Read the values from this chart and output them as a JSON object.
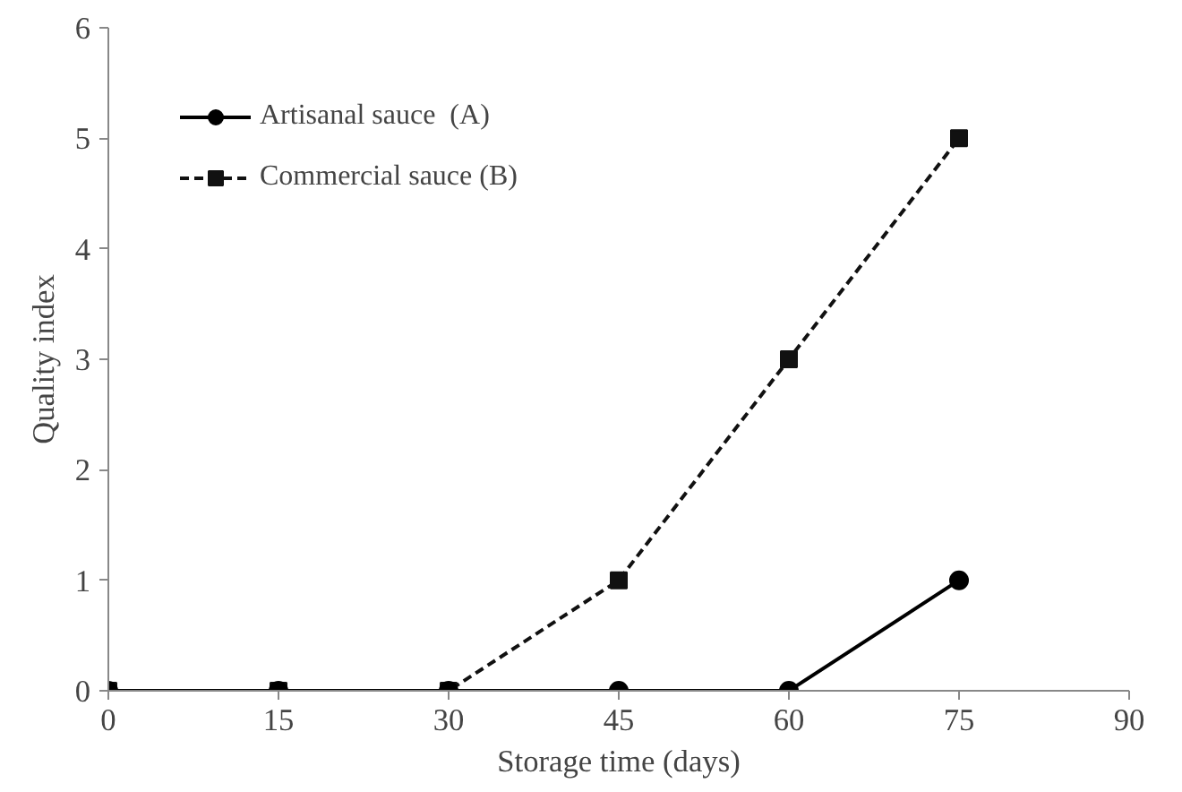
{
  "chart_data": {
    "type": "line",
    "xlabel": "Storage time (days)",
    "ylabel": "Quality index",
    "x": [
      0,
      15,
      30,
      45,
      60,
      75
    ],
    "series": [
      {
        "name": "Artisanal sauce  (A)",
        "color": "#000000",
        "values": [
          0,
          0,
          0,
          0,
          0,
          1
        ],
        "marker": "circle",
        "line_style": "solid"
      },
      {
        "name": "Commercial sauce (B)",
        "color": "#111111",
        "values": [
          0,
          0,
          0,
          1,
          3,
          5
        ],
        "marker": "square",
        "line_style": "dashed"
      }
    ],
    "xlim": [
      0,
      90
    ],
    "xticks": [
      0,
      15,
      30,
      45,
      60,
      75,
      90
    ],
    "ylim": [
      0,
      6
    ],
    "yticks": [
      0,
      1,
      2,
      3,
      4,
      5,
      6
    ],
    "grid": false,
    "legend": "top left"
  }
}
